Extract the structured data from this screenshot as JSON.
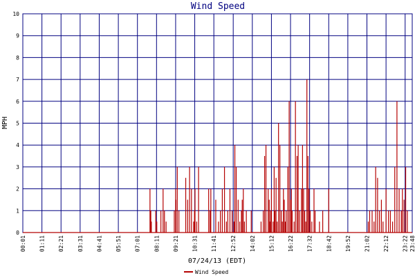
{
  "chart_data": {
    "type": "line",
    "title": "Wind Speed",
    "xlabel": "07/24/13 (EDT)",
    "ylabel": "MPH",
    "ylim": [
      0,
      10
    ],
    "yticks": [
      "0",
      "1",
      "2",
      "3",
      "4",
      "5",
      "6",
      "7",
      "8",
      "9",
      "10"
    ],
    "xlim": [
      "00:01",
      "23:48"
    ],
    "xticks": [
      "00:01",
      "01:11",
      "02:21",
      "03:31",
      "04:41",
      "05:51",
      "07:01",
      "08:11",
      "09:21",
      "10:31",
      "11:41",
      "12:52",
      "14:02",
      "15:12",
      "16:22",
      "17:32",
      "18:42",
      "19:52",
      "21:02",
      "22:12",
      "23:22",
      "23:48"
    ],
    "grid": true,
    "legend": "bottom-left",
    "colors": {
      "series": "#b40000",
      "grid": "#000080",
      "title": "#000080"
    },
    "series": [
      {
        "name": "Wind Speed",
        "x": [
          "07:46",
          "07:47",
          "07:48",
          "07:50",
          "07:52",
          "07:57",
          "08:08",
          "08:12",
          "08:16",
          "08:27",
          "08:35",
          "08:40",
          "08:46",
          "08:51",
          "09:16",
          "09:21",
          "09:22",
          "09:27",
          "09:33",
          "09:45",
          "09:58",
          "10:05",
          "10:12",
          "10:19",
          "10:27",
          "10:30",
          "10:32",
          "10:38",
          "10:45",
          "11:03",
          "11:22",
          "11:27",
          "11:30",
          "11:48",
          "11:58",
          "12:05",
          "12:12",
          "12:20",
          "12:27",
          "12:32",
          "12:40",
          "12:48",
          "12:55",
          "12:58",
          "13:03",
          "13:10",
          "13:16",
          "13:22",
          "13:25",
          "13:29",
          "13:33",
          "13:40",
          "13:45",
          "13:58",
          "14:19",
          "14:34",
          "14:42",
          "14:47",
          "14:52",
          "15:00",
          "15:04",
          "15:06",
          "15:09",
          "15:12",
          "15:18",
          "15:22",
          "15:25",
          "15:29",
          "15:33",
          "15:38",
          "15:43",
          "15:48",
          "15:52",
          "15:56",
          "15:59",
          "16:03",
          "16:06",
          "16:12",
          "16:17",
          "16:22",
          "16:25",
          "16:28",
          "16:35",
          "16:40",
          "16:46",
          "16:50",
          "16:55",
          "17:02",
          "17:06",
          "17:10",
          "17:14",
          "17:18",
          "17:22",
          "17:26",
          "17:30",
          "17:34",
          "17:40",
          "17:48",
          "17:52",
          "17:58",
          "18:08",
          "18:20",
          "18:42",
          "18:47",
          "19:52",
          "21:02",
          "21:07",
          "21:12",
          "21:21",
          "21:28",
          "21:34",
          "21:41",
          "21:48",
          "21:55",
          "22:01",
          "22:12",
          "22:21",
          "22:28",
          "22:36",
          "22:44",
          "22:52",
          "23:00",
          "23:08",
          "23:12",
          "23:18",
          "23:24",
          "23:30",
          "23:36",
          "23:42",
          "23:48"
        ],
        "values": [
          0,
          2,
          1,
          1,
          0.5,
          0,
          1,
          0.5,
          0,
          1,
          2,
          1,
          0.5,
          0,
          1,
          2,
          1.5,
          3,
          1,
          0,
          2.5,
          1.5,
          3,
          2,
          0.5,
          1,
          2,
          0.5,
          3,
          0,
          2,
          1,
          2,
          1.5,
          0.5,
          1,
          2,
          3,
          0.5,
          1,
          2,
          1,
          0.5,
          4,
          3,
          1.5,
          0.5,
          1,
          1.5,
          2,
          0.5,
          1,
          0,
          1,
          0,
          0.5,
          1,
          3.5,
          4,
          2,
          1.5,
          0.5,
          1,
          2,
          0.5,
          3,
          1,
          2.5,
          0.5,
          5,
          4,
          1,
          0.5,
          2,
          1.5,
          0.5,
          1,
          3,
          6,
          1.5,
          2,
          1,
          0.5,
          6,
          3.5,
          4,
          1,
          2,
          4,
          2,
          1,
          0.5,
          7,
          3.5,
          2,
          1,
          0.5,
          2,
          1,
          0,
          0.5,
          1,
          2,
          0,
          0,
          0,
          0.5,
          1,
          1,
          0.5,
          3,
          2.5,
          1,
          1.5,
          0.5,
          2,
          1,
          1,
          0.5,
          3,
          6,
          2,
          1,
          2,
          1.5,
          3,
          1,
          0,
          0,
          0
        ]
      }
    ]
  }
}
